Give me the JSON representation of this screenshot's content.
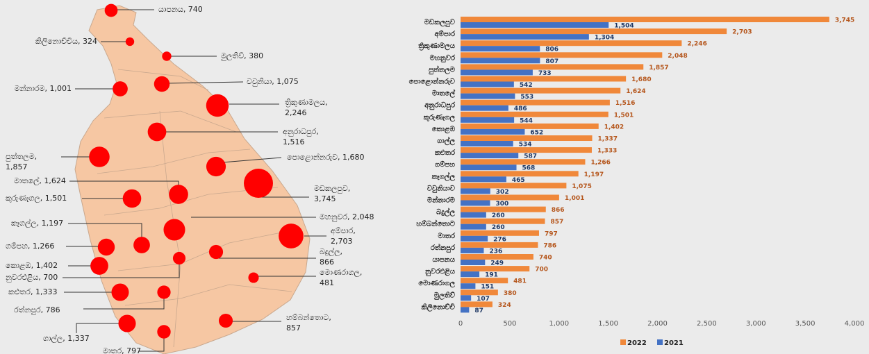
{
  "chart_data": [
    {
      "type": "bubble-map",
      "labels": [
        [
          "යාපනය, 740"
        ],
        [
          "කිලිනොච්චිය, 324"
        ],
        [
          "මුලතිව්, 380"
        ],
        [
          "මන්නාරම, 1,001"
        ],
        [
          "වවුනියා, 1,075"
        ],
        [
          "ත්‍රිකුණාමලය,",
          "2,246"
        ],
        [
          "අනුරාධපුර,",
          "1,516"
        ],
        [
          "පුත්තලම,",
          "1,857"
        ],
        [
          "පොළොන්නරුව, 1,680"
        ],
        [
          "මාතලේ, 1,624"
        ],
        [
          "කුරුණෑගල, 1,501"
        ],
        [
          "මඩකලපුව,",
          "3,745"
        ],
        [
          "මහනුවර, 2,048"
        ],
        [
          "කෑගල්ල, 1,197"
        ],
        [
          "අම්පාර,",
          "2,703"
        ],
        [
          "ගම්පහ, 1,266"
        ],
        [
          "බදුල්ල,",
          "866"
        ],
        [
          "කොළඹ, 1,402"
        ],
        [
          "නුවරඑළිය, 700"
        ],
        [
          "මොණරාගල,",
          "481"
        ],
        [
          "කළුතර, 1,333"
        ],
        [
          "රත්නපුර, 786"
        ],
        [
          "හම්බන්තොට,",
          "857"
        ],
        [
          "ගාල්ල, 1,337"
        ],
        [
          "මාතර, 797"
        ]
      ],
      "values": [
        740,
        324,
        380,
        1001,
        1075,
        2246,
        1516,
        1857,
        1680,
        1624,
        1501,
        3745,
        2048,
        1197,
        2703,
        1266,
        866,
        1402,
        700,
        481,
        1333,
        786,
        857,
        1337,
        797
      ],
      "color": "#ff0000"
    },
    {
      "type": "bar",
      "orientation": "horizontal",
      "categories": [
        "මඩකලපුව",
        "අම්පාර",
        "ත්‍රිකුණාමලය",
        "මහනුවර",
        "පුත්තලම",
        "පොළොන්නරුව",
        "මාතලේ",
        "අනුරාධපුර",
        "කුරුණෑගල",
        "කොළඹ",
        "ගාල්ල",
        "කළුතර",
        "ගම්පහ",
        "කෑගල්ල",
        "වවුනියාව",
        "මන්නාරම",
        "බදුල්ල",
        "හම්බන්තොට",
        "මාතර",
        "රත්නපුර",
        "යාපනය",
        "නුවරඑළිය",
        "මොණරාගල",
        "මුලතිව්",
        "කිලිනොච්චි"
      ],
      "series": [
        {
          "name": "2022",
          "color": "#f0883a",
          "values": [
            3745,
            2703,
            2246,
            2048,
            1857,
            1680,
            1624,
            1516,
            1501,
            1402,
            1337,
            1333,
            1266,
            1197,
            1075,
            1001,
            866,
            857,
            797,
            786,
            740,
            700,
            481,
            380,
            324
          ],
          "value_labels": [
            "3,745",
            "2,703",
            "2,246",
            "2,048",
            "1,857",
            "1,680",
            "1,624",
            "1,516",
            "1,501",
            "1,402",
            "1,337",
            "1,333",
            "1,266",
            "1,197",
            "1,075",
            "1,001",
            "866",
            "857",
            "797",
            "786",
            "740",
            "700",
            "481",
            "380",
            "324"
          ]
        },
        {
          "name": "2021",
          "color": "#4472c4",
          "values": [
            1504,
            1304,
            806,
            807,
            733,
            542,
            553,
            486,
            544,
            652,
            534,
            587,
            568,
            465,
            302,
            300,
            260,
            260,
            276,
            236,
            249,
            191,
            151,
            107,
            87
          ],
          "value_labels": [
            "1,504",
            "1,304",
            "806",
            "807",
            "733",
            "542",
            "553",
            "486",
            "544",
            "652",
            "534",
            "587",
            "568",
            "465",
            "302",
            "300",
            "260",
            "260",
            "276",
            "236",
            "249",
            "191",
            "151",
            "107",
            "87"
          ]
        }
      ],
      "xlim": [
        0,
        4000
      ],
      "xticks": [
        0,
        500,
        {
          "value": 1000,
          "label": "1,000"
        },
        {
          "value": 1500,
          "label": "1,500"
        },
        {
          "value": 2000,
          "label": "2,000"
        },
        {
          "value": 2500,
          "label": "2,500"
        },
        {
          "value": 3000,
          "label": "3,000"
        },
        {
          "value": 3500,
          "label": "3,500"
        },
        {
          "value": 4000,
          "label": "4,000"
        }
      ],
      "grid": false,
      "legend": "bottom"
    }
  ]
}
